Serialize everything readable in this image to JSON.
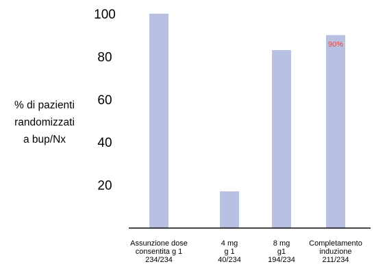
{
  "chart_data": {
    "type": "bar",
    "ylabel_lines": [
      "% di pazienti",
      "randomizzati",
      "a bup/Nx"
    ],
    "yticks": [
      20,
      40,
      60,
      80,
      100
    ],
    "ylim": [
      0,
      100
    ],
    "categories": [
      [
        "Assunzione dose",
        "consentita g 1",
        "234/234"
      ],
      [
        "4 mg",
        "g 1",
        "40/234"
      ],
      [
        "8 mg",
        "g1",
        "194/234"
      ],
      [
        "Completamento",
        "induzione",
        "211/234"
      ]
    ],
    "values": [
      100,
      17,
      83,
      90
    ],
    "data_labels": [
      "",
      "",
      "",
      "90%"
    ],
    "colors": {
      "bar": "#b9c1e3",
      "data_label": "#e8433a",
      "axis": "#000000"
    }
  }
}
